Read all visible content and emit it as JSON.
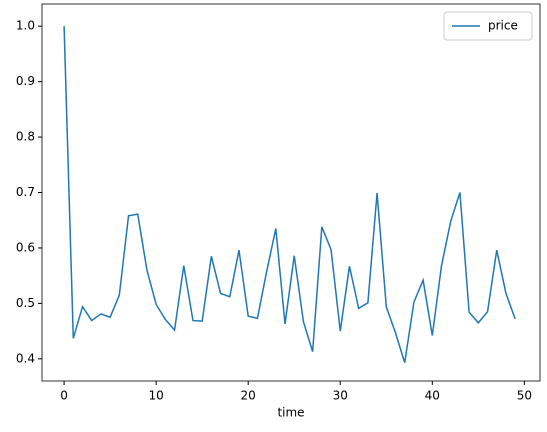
{
  "chart_data": {
    "type": "line",
    "xlabel": "time",
    "x": [
      0,
      1,
      2,
      3,
      4,
      5,
      6,
      7,
      8,
      9,
      10,
      11,
      12,
      13,
      14,
      15,
      16,
      17,
      18,
      19,
      20,
      21,
      22,
      23,
      24,
      25,
      26,
      27,
      28,
      29,
      30,
      31,
      32,
      33,
      34,
      35,
      36,
      37,
      38,
      39,
      40,
      41,
      42,
      43,
      44,
      45,
      46,
      47,
      48,
      49
    ],
    "series": [
      {
        "name": "price",
        "color": "#1f77b4",
        "values": [
          1.0,
          0.437,
          0.494,
          0.469,
          0.481,
          0.475,
          0.515,
          0.658,
          0.661,
          0.56,
          0.498,
          0.471,
          0.452,
          0.568,
          0.469,
          0.468,
          0.585,
          0.518,
          0.512,
          0.596,
          0.477,
          0.473,
          0.557,
          0.635,
          0.463,
          0.586,
          0.467,
          0.413,
          0.638,
          0.597,
          0.45,
          0.567,
          0.491,
          0.501,
          0.699,
          0.494,
          0.447,
          0.393,
          0.502,
          0.542,
          0.442,
          0.568,
          0.648,
          0.7,
          0.484,
          0.465,
          0.485,
          0.596,
          0.518,
          0.472
        ]
      }
    ],
    "xlim": [
      -2.4,
      51.7
    ],
    "ylim": [
      0.36,
      1.04
    ],
    "xticks": [
      0,
      10,
      20,
      30,
      40,
      50
    ],
    "yticks": [
      0.4,
      0.5,
      0.6,
      0.7,
      0.8,
      0.9,
      {
        "value": 1,
        "label": "1.0"
      }
    ],
    "legend": "upper right"
  }
}
